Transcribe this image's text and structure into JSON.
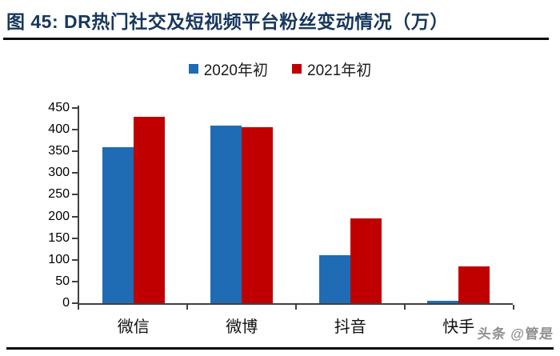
{
  "title": "图 45: DR热门社交及短视频平台粉丝变动情况（万）",
  "watermark": "头条 @管是",
  "colors": {
    "title_navy": "#17375E",
    "series_blue": "#1F6CB4",
    "series_red": "#C00000",
    "axis": "#404040",
    "rule": "#0b0b14",
    "watermark_gray": "#909090"
  },
  "chart_data": {
    "type": "bar",
    "title": "图 45: DR热门社交及短视频平台粉丝变动情况（万）",
    "categories": [
      "微信",
      "微博",
      "抖音",
      "快手"
    ],
    "series": [
      {
        "name": "2020年初",
        "color": "#1F6CB4",
        "values": [
          360,
          409,
          110,
          5
        ]
      },
      {
        "name": "2021年初",
        "color": "#C00000",
        "values": [
          430,
          405,
          195,
          85
        ]
      }
    ],
    "xlabel": "",
    "ylabel": "",
    "ylim": [
      0,
      450
    ],
    "yticks": [
      0,
      50,
      100,
      150,
      200,
      250,
      300,
      350,
      400,
      450
    ],
    "grid": false,
    "legend_position": "top"
  }
}
